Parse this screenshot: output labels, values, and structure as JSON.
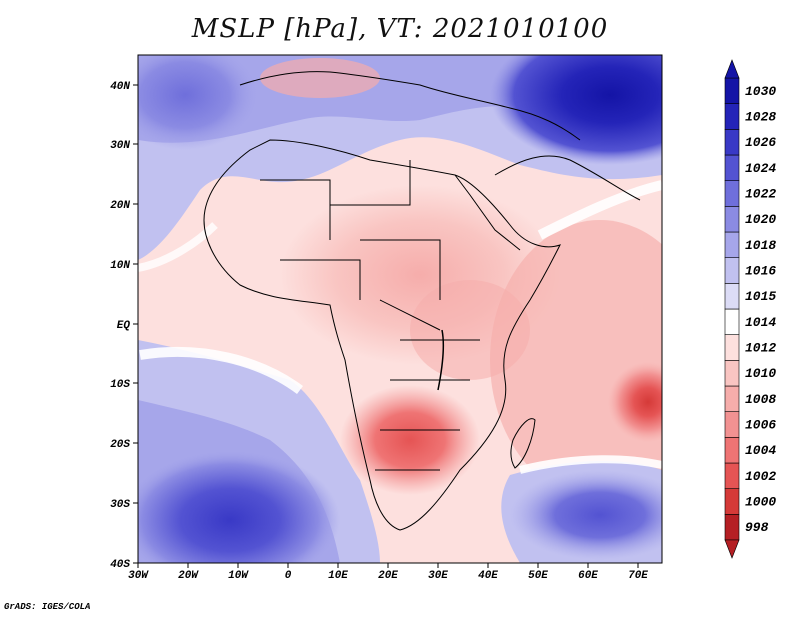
{
  "title": "MSLP [hPa], VT: 2021010100",
  "credit": "GrADS: IGES/COLA",
  "map": {
    "lat_ticks": [
      "40N",
      "30N",
      "20N",
      "10N",
      "EQ",
      "10S",
      "20S",
      "30S",
      "40S"
    ],
    "lon_ticks": [
      "30W",
      "20W",
      "10W",
      "0",
      "10E",
      "20E",
      "30E",
      "40E",
      "50E",
      "60E",
      "70E"
    ],
    "extent": {
      "lon_min": -30,
      "lon_max": 75,
      "lat_min": -40,
      "lat_max": 45
    }
  },
  "colorbar": {
    "levels": [
      "998",
      "1000",
      "1002",
      "1004",
      "1006",
      "1008",
      "1010",
      "1012",
      "1014",
      "1015",
      "1016",
      "1018",
      "1020",
      "1022",
      "1024",
      "1026",
      "1028",
      "1030"
    ],
    "colors": [
      "#b51f24",
      "#d53a38",
      "#e55454",
      "#ef7474",
      "#f29292",
      "#f6adab",
      "#f9c5c2",
      "#fde0de",
      "#ffffff",
      "#dcdcf6",
      "#c1c1f0",
      "#a6a6ea",
      "#8b8be3",
      "#6f6fdb",
      "#5353d2",
      "#3939c6",
      "#2424b8",
      "#1414a6"
    ]
  },
  "fields": {
    "surface_low_value": "1008",
    "ocean_high_value": "1028"
  }
}
